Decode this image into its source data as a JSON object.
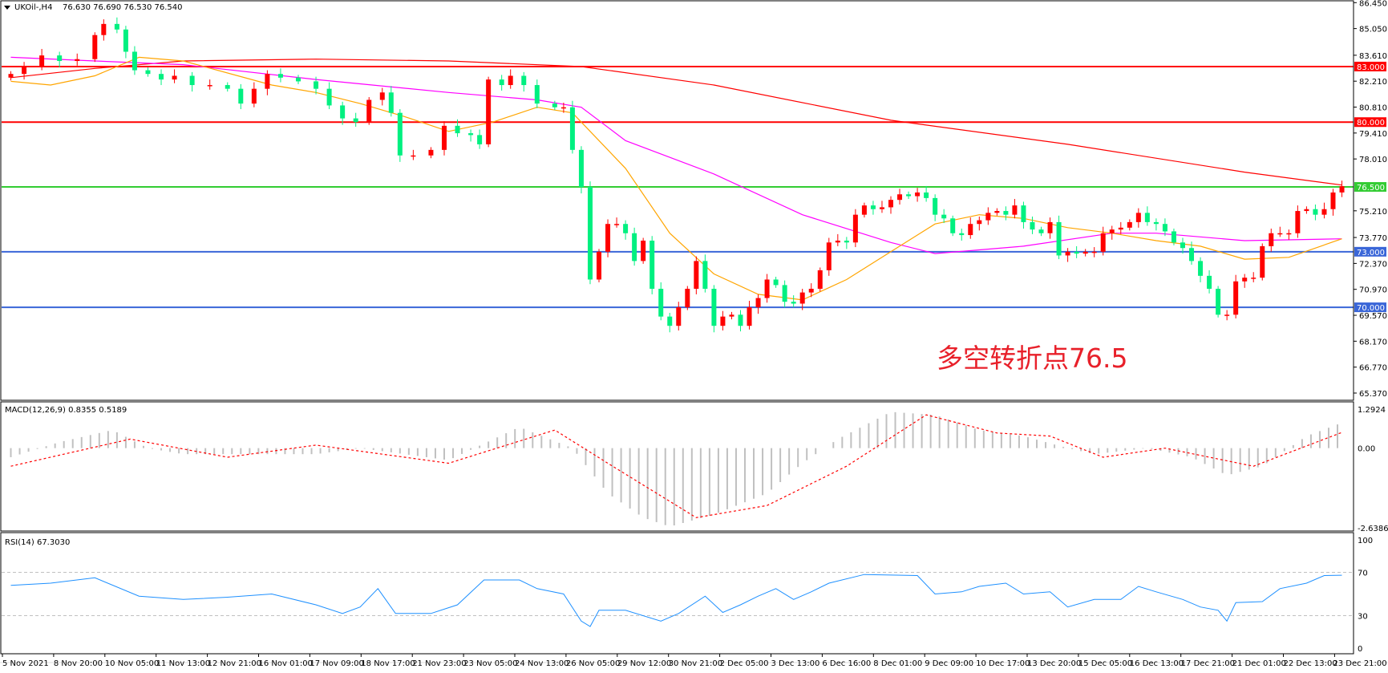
{
  "header": {
    "symbol": "UKOil-,H4",
    "ohlc": "76.630 76.690 76.530 76.540",
    "menu_icon": "triangle-down-icon"
  },
  "annotation": "多空转折点76.5",
  "colors": {
    "bull": "#ff0000",
    "bear": "#00f080",
    "ma_long": "#ff0000",
    "ma_mid": "#ff00ff",
    "ma_short": "#ffa500",
    "level_red": "#ff0000",
    "level_green": "#33cc33",
    "level_blue": "#3a66d8",
    "rsi": "#1e90ff",
    "macd_hist": "#c0c0c0",
    "macd_signal": "#ff0000"
  },
  "chart_data": [
    {
      "type": "candlestick",
      "title": "UKOil-,H4",
      "y_ticks": [
        "86.450",
        "85.050",
        "83.610",
        "82.210",
        "80.810",
        "79.410",
        "78.010",
        "75.210",
        "73.770",
        "72.370",
        "70.970",
        "69.570",
        "68.170",
        "66.770",
        "65.370"
      ],
      "ylim": [
        65.37,
        86.45
      ],
      "levels": [
        {
          "value": 83.0,
          "label": "83.000",
          "color": "level_red"
        },
        {
          "value": 80.0,
          "label": "80.000",
          "color": "level_red"
        },
        {
          "value": 76.5,
          "label": "76.500",
          "color": "level_green"
        },
        {
          "value": 73.0,
          "label": "73.000",
          "color": "level_blue"
        },
        {
          "value": 70.0,
          "label": "70.000",
          "color": "level_blue"
        }
      ],
      "close": [
        [
          0.5,
          82.6
        ],
        [
          2,
          83.0
        ],
        [
          4,
          83.6
        ],
        [
          6,
          83.3
        ],
        [
          8,
          83.4
        ],
        [
          10,
          84.7
        ],
        [
          11,
          85.3
        ],
        [
          12.5,
          85.0
        ],
        [
          13.5,
          83.8
        ],
        [
          14.5,
          82.8
        ],
        [
          16,
          82.6
        ],
        [
          17.5,
          82.3
        ],
        [
          19,
          82.5
        ],
        [
          21,
          82.0
        ],
        [
          23,
          82.0
        ],
        [
          25,
          81.8
        ],
        [
          26.5,
          81.0
        ],
        [
          28,
          81.8
        ],
        [
          29.5,
          82.6
        ],
        [
          31,
          82.4
        ],
        [
          33,
          82.2
        ],
        [
          35,
          81.8
        ],
        [
          36.5,
          80.9
        ],
        [
          38,
          80.2
        ],
        [
          39.5,
          80.0
        ],
        [
          41,
          81.2
        ],
        [
          42.5,
          81.6
        ],
        [
          43.5,
          80.5
        ],
        [
          44.5,
          78.2
        ],
        [
          46,
          78.2
        ],
        [
          48,
          78.5
        ],
        [
          49.5,
          79.8
        ],
        [
          51,
          79.4
        ],
        [
          52.5,
          79.3
        ],
        [
          53.5,
          78.8
        ],
        [
          54.5,
          82.3
        ],
        [
          56,
          82.0
        ],
        [
          57,
          82.5
        ],
        [
          58.5,
          82.0
        ],
        [
          60,
          81.0
        ],
        [
          62,
          80.8
        ],
        [
          63,
          80.8
        ],
        [
          64,
          78.5
        ],
        [
          65,
          76.5
        ],
        [
          66,
          71.5
        ],
        [
          67,
          73.0
        ],
        [
          68,
          74.5
        ],
        [
          69,
          74.5
        ],
        [
          70,
          74.0
        ],
        [
          71,
          72.5
        ],
        [
          72,
          73.6
        ],
        [
          73,
          71.0
        ],
        [
          74,
          69.5
        ],
        [
          75,
          69.0
        ],
        [
          76,
          70.0
        ],
        [
          77,
          71.0
        ],
        [
          78,
          72.5
        ],
        [
          79,
          71.0
        ],
        [
          80,
          69.0
        ],
        [
          81,
          69.5
        ],
        [
          82,
          69.6
        ],
        [
          83,
          69.0
        ],
        [
          84,
          70.0
        ],
        [
          85,
          70.5
        ],
        [
          86,
          71.5
        ],
        [
          87,
          71.2
        ],
        [
          88,
          70.3
        ],
        [
          89,
          70.2
        ],
        [
          90,
          70.8
        ],
        [
          91,
          71.0
        ],
        [
          92,
          72.0
        ],
        [
          93,
          73.5
        ],
        [
          94,
          73.6
        ],
        [
          95,
          73.5
        ],
        [
          96,
          75.0
        ],
        [
          97,
          75.5
        ],
        [
          98,
          75.3
        ],
        [
          99,
          75.4
        ],
        [
          100,
          75.8
        ],
        [
          101,
          76.1
        ],
        [
          102,
          76.0
        ],
        [
          103,
          76.2
        ],
        [
          104,
          75.9
        ],
        [
          105,
          75.0
        ],
        [
          106,
          74.8
        ],
        [
          107,
          74.0
        ],
        [
          108,
          73.9
        ],
        [
          109,
          74.5
        ],
        [
          110,
          74.7
        ],
        [
          111,
          75.1
        ],
        [
          112,
          75.2
        ],
        [
          113,
          75.0
        ],
        [
          114,
          75.5
        ],
        [
          115,
          74.6
        ],
        [
          116,
          74.2
        ],
        [
          117,
          74.0
        ],
        [
          118,
          74.6
        ],
        [
          119,
          72.8
        ],
        [
          120,
          73.0
        ],
        [
          121,
          72.9
        ],
        [
          122,
          73.0
        ],
        [
          123,
          73.0
        ],
        [
          124,
          74.0
        ],
        [
          125,
          74.2
        ],
        [
          126,
          74.3
        ],
        [
          127,
          74.6
        ],
        [
          128,
          75.1
        ],
        [
          129,
          74.6
        ],
        [
          130,
          74.5
        ],
        [
          131,
          74.1
        ],
        [
          132,
          73.5
        ],
        [
          133,
          73.2
        ],
        [
          134,
          72.5
        ],
        [
          135,
          71.7
        ],
        [
          136,
          71.0
        ],
        [
          137,
          69.6
        ],
        [
          138,
          69.6
        ],
        [
          139,
          71.4
        ],
        [
          140,
          71.6
        ],
        [
          141,
          71.6
        ],
        [
          142,
          73.3
        ],
        [
          143,
          74.0
        ],
        [
          144,
          74.0
        ],
        [
          145,
          74.0
        ],
        [
          146,
          75.2
        ],
        [
          147,
          75.3
        ],
        [
          148,
          75.0
        ],
        [
          149,
          75.3
        ],
        [
          150,
          76.2
        ],
        [
          151,
          76.54
        ]
      ],
      "ma_long": [
        [
          0.5,
          82.4
        ],
        [
          10,
          82.9
        ],
        [
          20,
          83.3
        ],
        [
          35,
          83.4
        ],
        [
          50,
          83.3
        ],
        [
          65,
          83.0
        ],
        [
          80,
          82.0
        ],
        [
          100,
          80.1
        ],
        [
          120,
          78.8
        ],
        [
          140,
          77.3
        ],
        [
          151,
          76.6
        ]
      ],
      "ma_mid": [
        [
          0.5,
          83.5
        ],
        [
          10,
          83.3
        ],
        [
          20,
          83.1
        ],
        [
          35,
          82.3
        ],
        [
          50,
          81.6
        ],
        [
          60,
          81.2
        ],
        [
          65,
          80.8
        ],
        [
          70,
          79.0
        ],
        [
          80,
          77.2
        ],
        [
          90,
          75.0
        ],
        [
          100,
          73.5
        ],
        [
          105,
          72.9
        ],
        [
          115,
          73.3
        ],
        [
          125,
          74.0
        ],
        [
          130,
          74.0
        ],
        [
          140,
          73.6
        ],
        [
          151,
          73.7
        ]
      ],
      "ma_short": [
        [
          0.5,
          82.2
        ],
        [
          5,
          82.0
        ],
        [
          10,
          82.5
        ],
        [
          15,
          83.5
        ],
        [
          20,
          83.3
        ],
        [
          30,
          82.0
        ],
        [
          35,
          81.6
        ],
        [
          40,
          81.0
        ],
        [
          45,
          80.3
        ],
        [
          50,
          79.5
        ],
        [
          55,
          80.0
        ],
        [
          60,
          80.8
        ],
        [
          64,
          80.5
        ],
        [
          70,
          77.5
        ],
        [
          75,
          74.0
        ],
        [
          80,
          71.8
        ],
        [
          85,
          70.7
        ],
        [
          90,
          70.4
        ],
        [
          95,
          71.5
        ],
        [
          100,
          73.0
        ],
        [
          105,
          74.5
        ],
        [
          110,
          75.0
        ],
        [
          115,
          74.8
        ],
        [
          120,
          74.3
        ],
        [
          125,
          74.0
        ],
        [
          130,
          73.6
        ],
        [
          135,
          73.3
        ],
        [
          140,
          72.6
        ],
        [
          145,
          72.7
        ],
        [
          151,
          73.7
        ]
      ],
      "x_ticks": [
        "5 Nov 2021",
        "8 Nov 20:00",
        "10 Nov 05:00",
        "11 Nov 13:00",
        "12 Nov 21:00",
        "16 Nov 01:00",
        "17 Nov 09:00",
        "18 Nov 17:00",
        "21 Nov 23:00",
        "23 Nov 05:00",
        "24 Nov 13:00",
        "26 Nov 05:00",
        "29 Nov 12:00",
        "30 Nov 21:00",
        "2 Dec 05:00",
        "3 Dec 13:00",
        "6 Dec 16:00",
        "8 Dec 01:00",
        "9 Dec 09:00",
        "10 Dec 17:00",
        "13 Dec 20:00",
        "15 Dec 05:00",
        "16 Dec 13:00",
        "17 Dec 21:00",
        "21 Dec 01:00",
        "22 Dec 13:00",
        "23 Dec 21:00"
      ]
    },
    {
      "type": "bar",
      "title": "MACD(12,26,9) 0.8355 0.5189",
      "y_ticks": [
        "1.2924",
        "0.00",
        "-2.6386"
      ],
      "ylim": [
        -2.6386,
        1.2924
      ],
      "histogram": [
        [
          0.5,
          -0.3
        ],
        [
          6,
          0.2
        ],
        [
          12,
          0.6
        ],
        [
          16,
          0.0
        ],
        [
          20,
          -0.2
        ],
        [
          35,
          -0.2
        ],
        [
          40,
          0.0
        ],
        [
          50,
          -0.4
        ],
        [
          58,
          0.7
        ],
        [
          64,
          0.0
        ],
        [
          68,
          -1.5
        ],
        [
          72,
          -2.3
        ],
        [
          75,
          -2.6
        ],
        [
          80,
          -2.2
        ],
        [
          86,
          -1.5
        ],
        [
          90,
          -0.5
        ],
        [
          94,
          0.3
        ],
        [
          100,
          1.2
        ],
        [
          105,
          1.1
        ],
        [
          110,
          0.6
        ],
        [
          115,
          0.4
        ],
        [
          120,
          0.0
        ],
        [
          123,
          -0.2
        ],
        [
          129,
          0.0
        ],
        [
          134,
          -0.3
        ],
        [
          138,
          -0.9
        ],
        [
          142,
          -0.6
        ],
        [
          147,
          0.4
        ],
        [
          151,
          0.84
        ]
      ],
      "signal": [
        [
          0.5,
          -0.6
        ],
        [
          14,
          0.3
        ],
        [
          25,
          -0.3
        ],
        [
          35,
          0.1
        ],
        [
          50,
          -0.5
        ],
        [
          62,
          0.6
        ],
        [
          68,
          -0.5
        ],
        [
          78,
          -2.3
        ],
        [
          86,
          -1.9
        ],
        [
          95,
          -0.6
        ],
        [
          104,
          1.1
        ],
        [
          112,
          0.5
        ],
        [
          118,
          0.4
        ],
        [
          124,
          -0.3
        ],
        [
          131,
          0.0
        ],
        [
          141,
          -0.6
        ],
        [
          151,
          0.52
        ]
      ]
    },
    {
      "type": "line",
      "title": "RSI(14) 67.3030",
      "y_ticks": [
        "100",
        "70",
        "30",
        "0"
      ],
      "ylim": [
        0,
        100
      ],
      "levels": [
        70,
        30
      ],
      "values": [
        [
          0.5,
          58
        ],
        [
          5,
          60
        ],
        [
          10,
          65
        ],
        [
          15,
          48
        ],
        [
          20,
          45
        ],
        [
          25,
          47
        ],
        [
          30,
          50
        ],
        [
          35,
          40
        ],
        [
          38,
          32
        ],
        [
          40,
          38
        ],
        [
          42,
          55
        ],
        [
          44,
          32
        ],
        [
          48,
          32
        ],
        [
          51,
          40
        ],
        [
          54,
          63
        ],
        [
          58,
          63
        ],
        [
          60,
          55
        ],
        [
          63,
          50
        ],
        [
          65,
          25
        ],
        [
          66,
          20
        ],
        [
          67,
          35
        ],
        [
          70,
          35
        ],
        [
          74,
          25
        ],
        [
          76,
          32
        ],
        [
          79,
          48
        ],
        [
          81,
          33
        ],
        [
          83,
          40
        ],
        [
          85,
          48
        ],
        [
          87,
          55
        ],
        [
          89,
          45
        ],
        [
          91,
          52
        ],
        [
          93,
          60
        ],
        [
          97,
          68
        ],
        [
          103,
          67
        ],
        [
          105,
          50
        ],
        [
          108,
          52
        ],
        [
          110,
          57
        ],
        [
          113,
          60
        ],
        [
          115,
          50
        ],
        [
          118,
          52
        ],
        [
          120,
          38
        ],
        [
          123,
          45
        ],
        [
          126,
          45
        ],
        [
          128,
          57
        ],
        [
          130,
          52
        ],
        [
          133,
          45
        ],
        [
          135,
          38
        ],
        [
          137,
          35
        ],
        [
          138,
          25
        ],
        [
          139,
          42
        ],
        [
          142,
          43
        ],
        [
          144,
          55
        ],
        [
          147,
          60
        ],
        [
          149,
          67
        ],
        [
          151,
          67.3
        ]
      ]
    }
  ]
}
